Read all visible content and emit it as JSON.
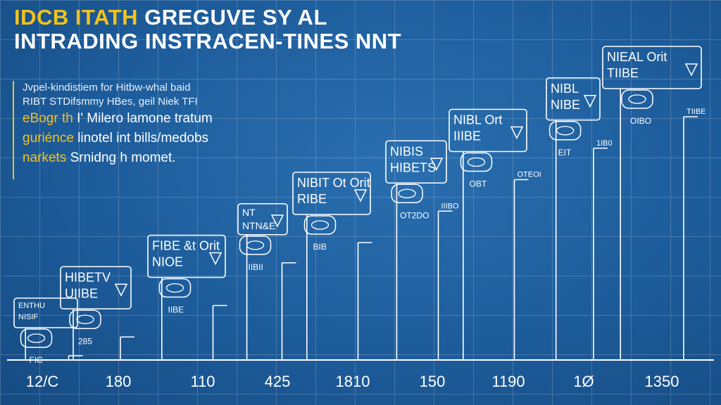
{
  "title": {
    "line1_yellow": "IDCB ITATH",
    "line1_white": " GREGUVE SY AL",
    "line2": "INTRADING INSTRACEN-TINES NNT"
  },
  "description": {
    "line1": "Jvpel-kindistiem for Hitbw-whal baid",
    "line2": "RIBT STDifsmmy HBes, geil Niek TFI",
    "line3_hl": "eBogr th",
    "line3_rest": " I' Milero lamone tratum",
    "line4_hl": "guriénce",
    "line4_rest": " linotel int bills/medobs",
    "line5_hl": "narkets",
    "line5_rest": " Srnidng h momet."
  },
  "colors": {
    "background": "#1c5d9c",
    "accent": "#f3c21b",
    "lines": "#ffffff"
  },
  "chart_data": {
    "type": "bar",
    "categories": [
      "12/C",
      "180",
      "110",
      "425",
      "1810",
      "150",
      "1190",
      "1Ø",
      "1350"
    ],
    "values": [
      1,
      2,
      3,
      4,
      5,
      6,
      7,
      8,
      9
    ],
    "xlabel": "",
    "ylabel": "",
    "grid": true,
    "legend": "none",
    "callouts": [
      {
        "line1": "ENTHU",
        "line2": "NISIF",
        "tag": "FIC"
      },
      {
        "line1": "HIBETV",
        "line2": "UIIBE",
        "tag": "285"
      },
      {
        "line1": "FIBE &t Orit",
        "line2": "NIOE",
        "tag": "IIBE"
      },
      {
        "line1": "NT",
        "line2": "NTN&E",
        "tag": "IIBII"
      },
      {
        "line1": "NIBIT Ot Orit",
        "line2": "RIBE",
        "tag": "BIB"
      },
      {
        "line1": "NIBIS",
        "line2": "HIBETS",
        "tag": "OT2DO"
      },
      {
        "line1": "NIBL Ort",
        "line2": "IIIBE",
        "tag": "OBT"
      },
      {
        "line1": "NIBL",
        "line2": "NIBE",
        "tag": "EIT"
      },
      {
        "line1": "NIEAL Orit",
        "line2": "TIIBE",
        "tag": "OIBO"
      }
    ],
    "bar_tags": [
      "",
      "",
      "",
      "",
      "",
      "IIIBO",
      "OTEOI",
      "1IB0",
      "TIIBE"
    ]
  }
}
